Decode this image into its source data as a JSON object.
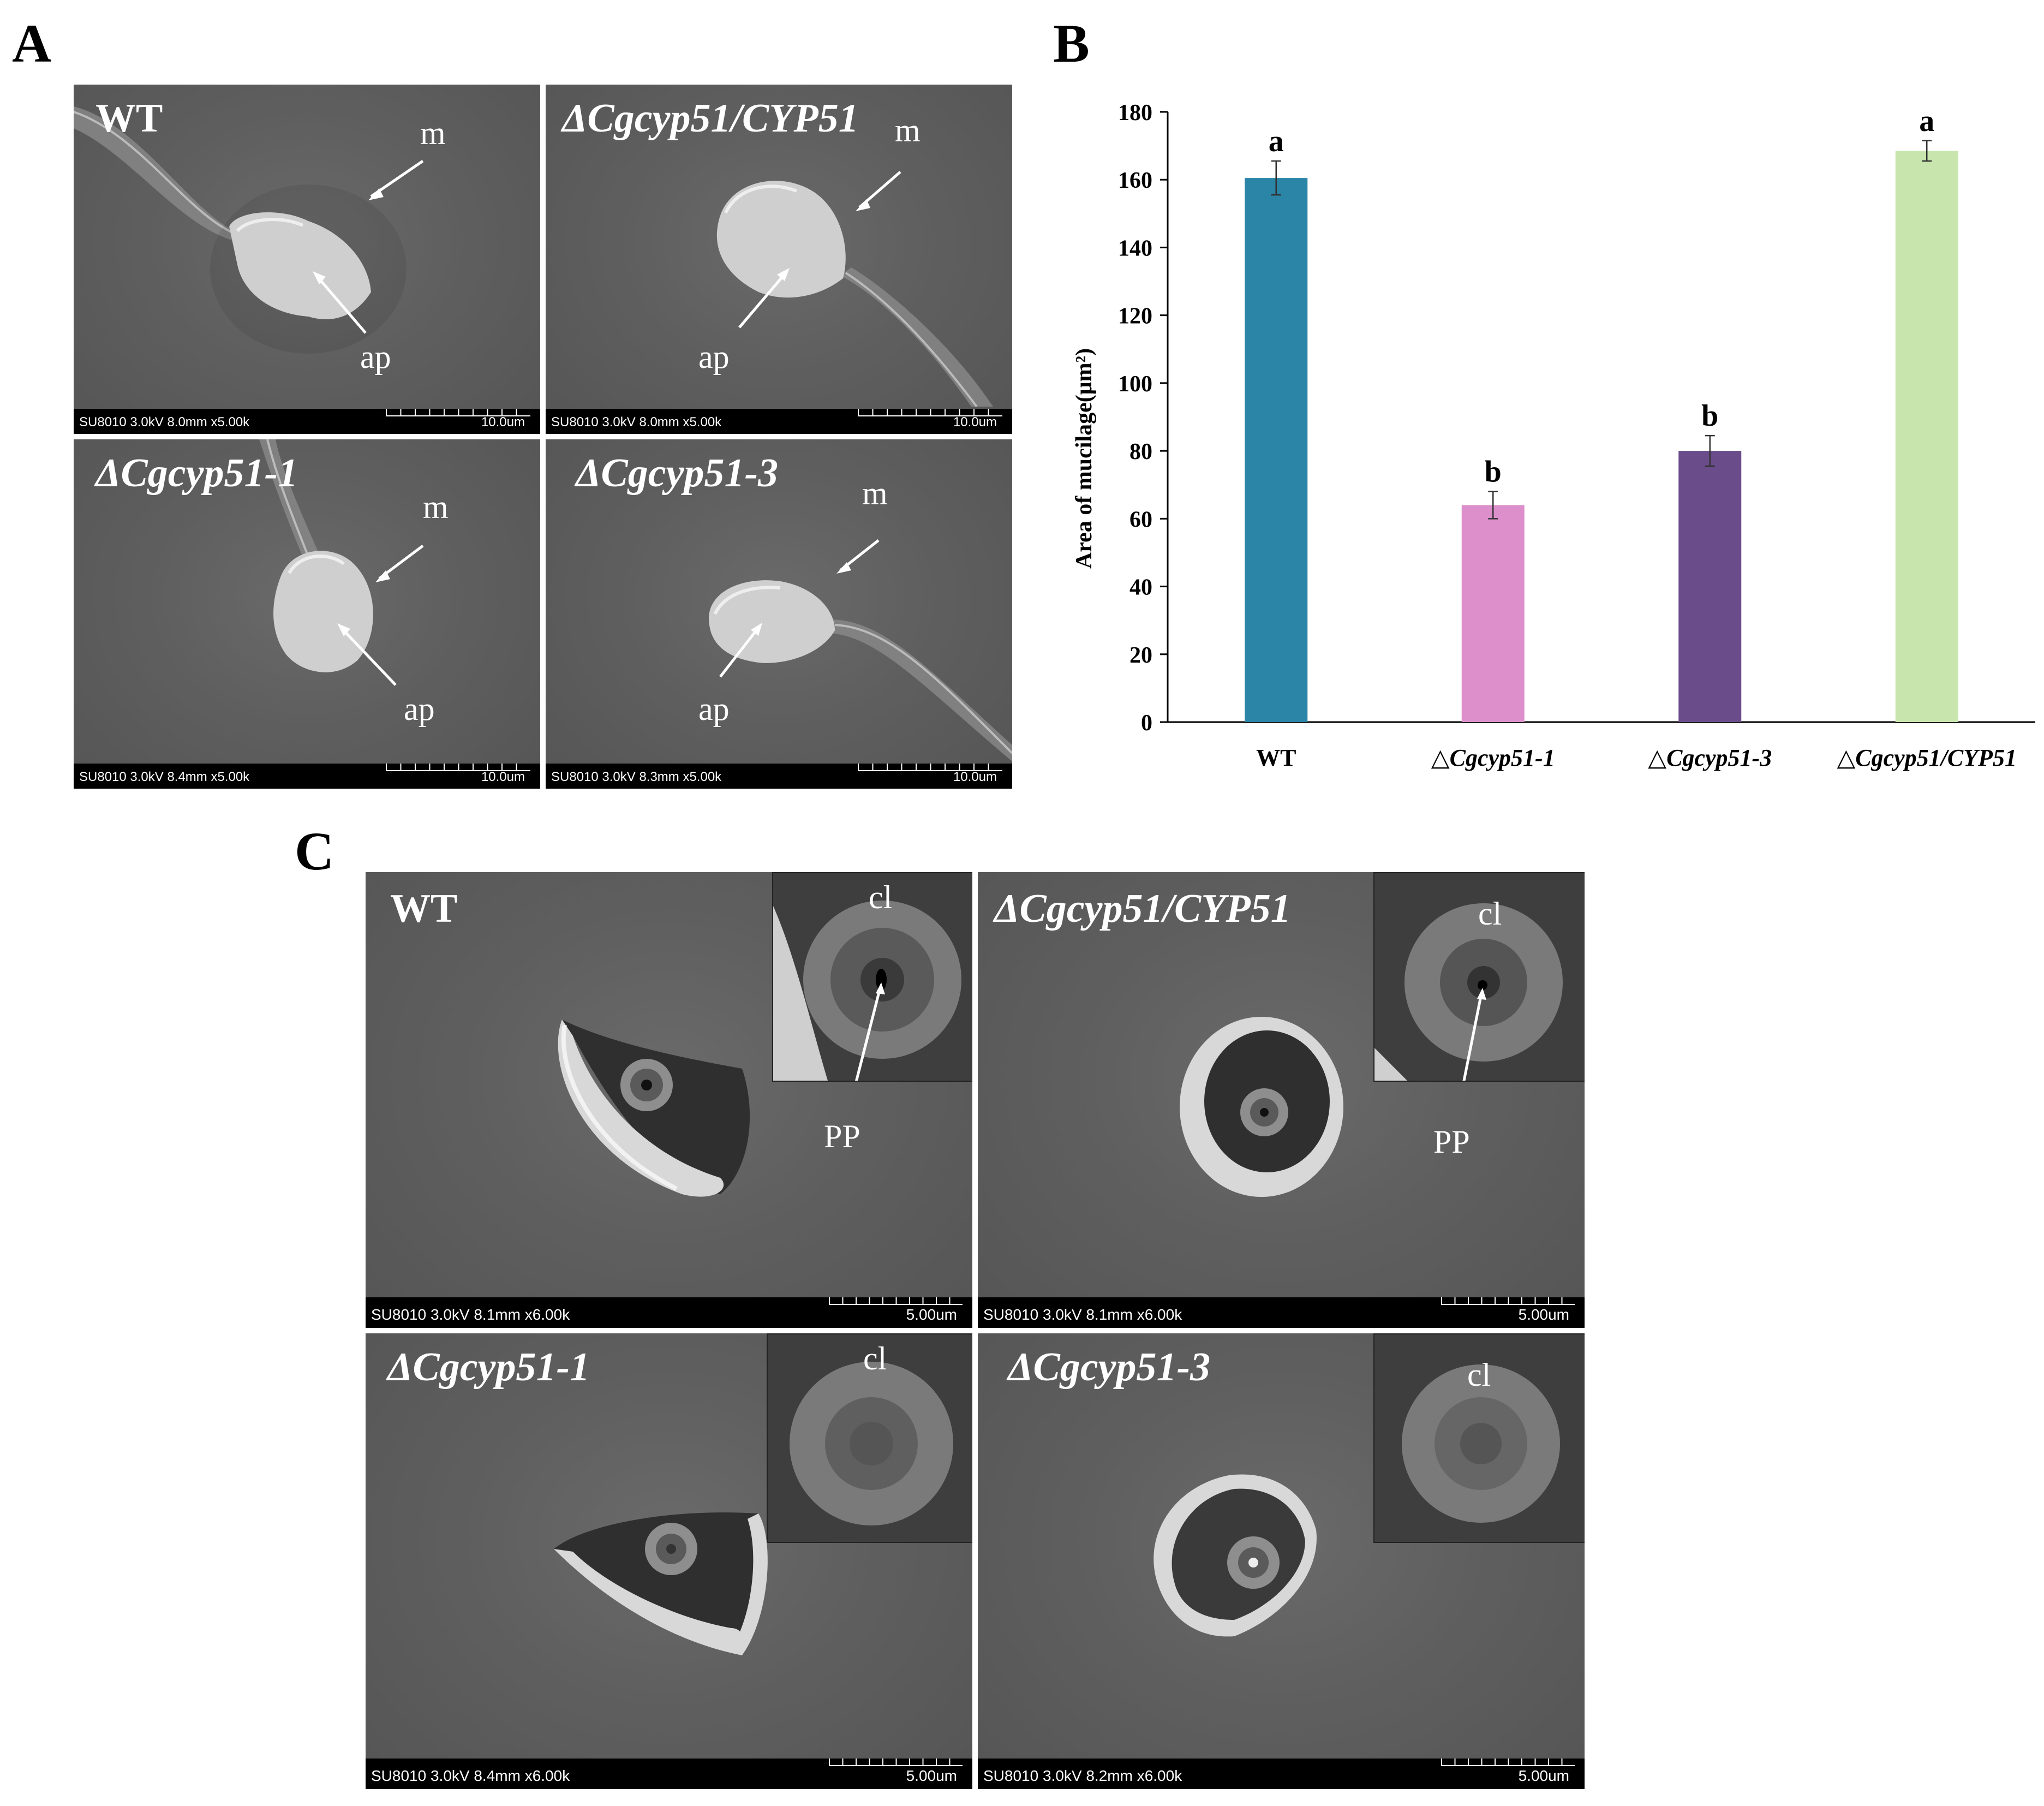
{
  "panel_labels": {
    "a": "A",
    "b": "B",
    "c": "C"
  },
  "panel_a": {
    "images": [
      {
        "title": "WT",
        "italic": false,
        "labels": [
          "m",
          "ap"
        ],
        "info": "SU8010 3.0kV 8.0mm x5.00k",
        "scale": "10.0um"
      },
      {
        "title": "ΔCgcyp51/CYP51",
        "italic": true,
        "labels": [
          "m",
          "ap"
        ],
        "info": "SU8010 3.0kV 8.0mm x5.00k",
        "scale": "10.0um"
      },
      {
        "title": "ΔCgcyp51-1",
        "italic": true,
        "labels": [
          "m",
          "ap"
        ],
        "info": "SU8010 3.0kV 8.4mm x5.00k",
        "scale": "10.0um"
      },
      {
        "title": "ΔCgcyp51-3",
        "italic": true,
        "labels": [
          "m",
          "ap"
        ],
        "info": "SU8010 3.0kV 8.3mm x5.00k",
        "scale": "10.0um"
      }
    ]
  },
  "panel_c": {
    "images": [
      {
        "title": "WT",
        "italic": false,
        "inset_label": "cl",
        "arrow_label": "PP",
        "info": "SU8010 3.0kV 8.1mm x6.00k",
        "scale": "5.00um"
      },
      {
        "title": "ΔCgcyp51/CYP51",
        "italic": true,
        "inset_label": "cl",
        "arrow_label": "PP",
        "info": "SU8010 3.0kV 8.1mm x6.00k",
        "scale": "5.00um"
      },
      {
        "title": "ΔCgcyp51-1",
        "italic": true,
        "inset_label": "cl",
        "arrow_label": "",
        "info": "SU8010 3.0kV 8.4mm x6.00k",
        "scale": "5.00um"
      },
      {
        "title": "ΔCgcyp51-3",
        "italic": true,
        "inset_label": "cl",
        "arrow_label": "",
        "info": "SU8010 3.0kV 8.2mm x6.00k",
        "scale": "5.00um"
      }
    ]
  },
  "chart_data": {
    "type": "bar",
    "title": "",
    "xlabel": "",
    "ylabel": "Area of mucilage(μm²)",
    "ylim": [
      0,
      180
    ],
    "yticks": [
      0,
      20,
      40,
      60,
      80,
      100,
      120,
      140,
      160,
      180
    ],
    "categories": [
      "WT",
      "△Cgcyp51-1",
      "△Cgcyp51-3",
      "△Cgcyp51/CYP51"
    ],
    "values": [
      160.5,
      64,
      80,
      168.5
    ],
    "errors": [
      5,
      4,
      4.5,
      3
    ],
    "significance": [
      "a",
      "b",
      "b",
      "a"
    ],
    "colors": [
      "#2a85a6",
      "#dc8fcb",
      "#6a4c8a",
      "#c8e5ad"
    ],
    "grid": false,
    "legend": "none"
  }
}
